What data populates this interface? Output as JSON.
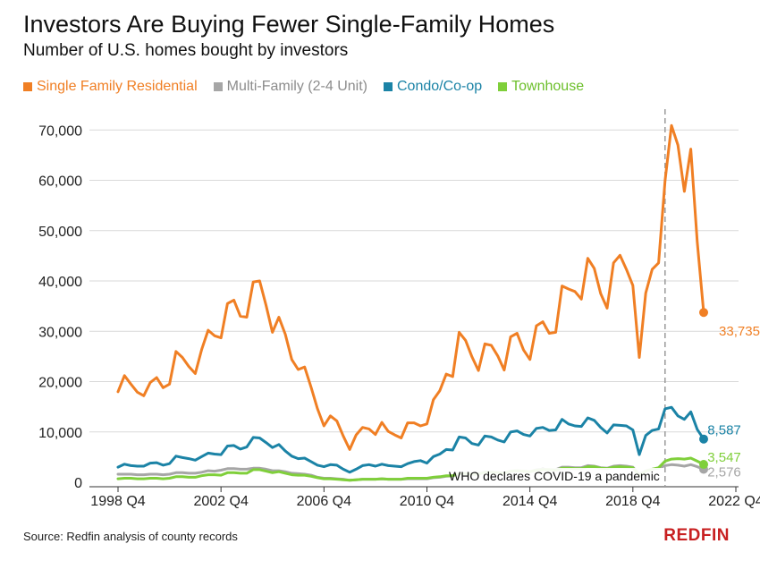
{
  "title": "Investors Are Buying Fewer Single-Family Homes",
  "subtitle": "Number of U.S. homes bought by investors",
  "source": "Source: Redfin analysis of county records",
  "brand": "REDFIN",
  "colors": {
    "single_family": "#f07f24",
    "multi_family": "#a6a6a6",
    "condo": "#1b83a6",
    "townhouse": "#7fcf3a",
    "grid": "#d9d9d9",
    "annotation_line": "#9a9a9a"
  },
  "chart_data": {
    "type": "line",
    "ylim": [
      0,
      72000
    ],
    "yticks": [
      0,
      10000,
      20000,
      30000,
      40000,
      50000,
      60000,
      70000
    ],
    "ytick_labels": [
      "0",
      "10,000",
      "20,000",
      "30,000",
      "40,000",
      "50,000",
      "60,000",
      "70,000"
    ],
    "xticks": [
      "1998 Q4",
      "2002 Q4",
      "2006 Q4",
      "2010 Q4",
      "2014 Q4",
      "2018 Q4",
      "2022 Q4"
    ],
    "x_start": "1998 Q4",
    "x_end": "2022 Q4",
    "grid": true,
    "legend_position": "top-left",
    "annotation": {
      "label": "WHO declares COVID-19 a pandemic",
      "x": "2020 Q1"
    },
    "end_labels": [
      {
        "series": "Single Family Residential",
        "label": "33,735"
      },
      {
        "series": "Condo/Co-op",
        "label": "8,587"
      },
      {
        "series": "Townhouse",
        "label": "3,547"
      },
      {
        "series": "Multi-Family (2-4 Unit)",
        "label": "2,576"
      }
    ],
    "series": [
      {
        "name": "Single Family Residential",
        "color": "#f07f24",
        "values": [
          18000,
          21200,
          19500,
          17900,
          17200,
          19800,
          20800,
          18800,
          19500,
          26000,
          24800,
          23000,
          21600,
          26400,
          30200,
          29100,
          28700,
          35500,
          36200,
          33000,
          32800,
          39800,
          40000,
          35200,
          29800,
          32800,
          29400,
          24400,
          22400,
          22900,
          18900,
          14600,
          11200,
          13200,
          12200,
          9200,
          6500,
          9400,
          10900,
          10600,
          9500,
          11900,
          10100,
          9400,
          8800,
          11800,
          11800,
          11200,
          11600,
          16400,
          18200,
          21500,
          21000,
          29800,
          28200,
          24900,
          22200,
          27500,
          27200,
          25100,
          22300,
          28900,
          29600,
          26300,
          24400,
          31100,
          31900,
          29600,
          29800,
          39000,
          38400,
          37900,
          36400,
          44500,
          42500,
          37500,
          34600,
          43600,
          45100,
          42300,
          39100,
          24800,
          37600,
          42300,
          43600,
          59900,
          70900,
          67000,
          57800,
          66200,
          47800,
          33735
        ]
      },
      {
        "name": "Multi-Family (2-4 Unit)",
        "color": "#a6a6a6",
        "values": [
          1600,
          1600,
          1600,
          1500,
          1500,
          1600,
          1600,
          1500,
          1600,
          1900,
          1900,
          1800,
          1800,
          2000,
          2300,
          2200,
          2400,
          2700,
          2700,
          2600,
          2600,
          2800,
          2800,
          2600,
          2300,
          2300,
          2100,
          1800,
          1700,
          1600,
          1400,
          1000,
          800,
          800,
          700,
          600,
          400,
          500,
          600,
          600,
          600,
          700,
          600,
          600,
          600,
          700,
          700,
          700,
          700,
          900,
          1000,
          1200,
          1300,
          1700,
          1800,
          1700,
          1700,
          2100,
          2100,
          1900,
          1800,
          2200,
          2300,
          2200,
          2100,
          2500,
          2600,
          2500,
          2500,
          3000,
          3000,
          2900,
          2900,
          3300,
          3200,
          2900,
          2800,
          3200,
          3300,
          3200,
          3000,
          1600,
          2300,
          2600,
          2800,
          3300,
          3500,
          3400,
          3200,
          3500,
          3100,
          2576
        ]
      },
      {
        "name": "Condo/Co-op",
        "color": "#1b83a6",
        "values": [
          3000,
          3600,
          3300,
          3200,
          3200,
          3800,
          3900,
          3400,
          3700,
          5200,
          4900,
          4700,
          4400,
          5100,
          5800,
          5600,
          5500,
          7200,
          7300,
          6600,
          7000,
          8900,
          8800,
          7900,
          6900,
          7500,
          6200,
          5200,
          4700,
          4800,
          4100,
          3400,
          3100,
          3500,
          3400,
          2600,
          2000,
          2600,
          3300,
          3500,
          3200,
          3600,
          3300,
          3200,
          3100,
          3700,
          4100,
          4300,
          3800,
          5100,
          5600,
          6500,
          6400,
          9000,
          8800,
          7700,
          7400,
          9200,
          9000,
          8400,
          8000,
          10000,
          10200,
          9500,
          9200,
          10700,
          10900,
          10300,
          10400,
          12500,
          11600,
          11200,
          11100,
          12800,
          12300,
          10900,
          9800,
          11400,
          11300,
          11200,
          10400,
          5500,
          9300,
          10300,
          10600,
          14600,
          14900,
          13200,
          12500,
          14000,
          10500,
          8587
        ]
      },
      {
        "name": "Townhouse",
        "color": "#7fcf3a",
        "values": [
          700,
          800,
          800,
          700,
          700,
          800,
          800,
          700,
          800,
          1100,
          1100,
          1000,
          1000,
          1300,
          1500,
          1500,
          1400,
          1900,
          1900,
          1800,
          1800,
          2500,
          2500,
          2200,
          1900,
          2100,
          1800,
          1500,
          1400,
          1400,
          1200,
          900,
          700,
          700,
          600,
          500,
          400,
          500,
          600,
          600,
          600,
          700,
          600,
          600,
          600,
          800,
          800,
          800,
          800,
          1000,
          1100,
          1300,
          1300,
          1700,
          1700,
          1600,
          1600,
          2000,
          2000,
          1900,
          1800,
          2200,
          2300,
          2200,
          2100,
          2400,
          2500,
          2500,
          2400,
          2800,
          2800,
          2700,
          2700,
          3100,
          3100,
          2800,
          2700,
          3000,
          3100,
          3000,
          2900,
          1400,
          2200,
          2600,
          2900,
          4200,
          4600,
          4700,
          4600,
          4800,
          4200,
          3547
        ]
      }
    ]
  }
}
